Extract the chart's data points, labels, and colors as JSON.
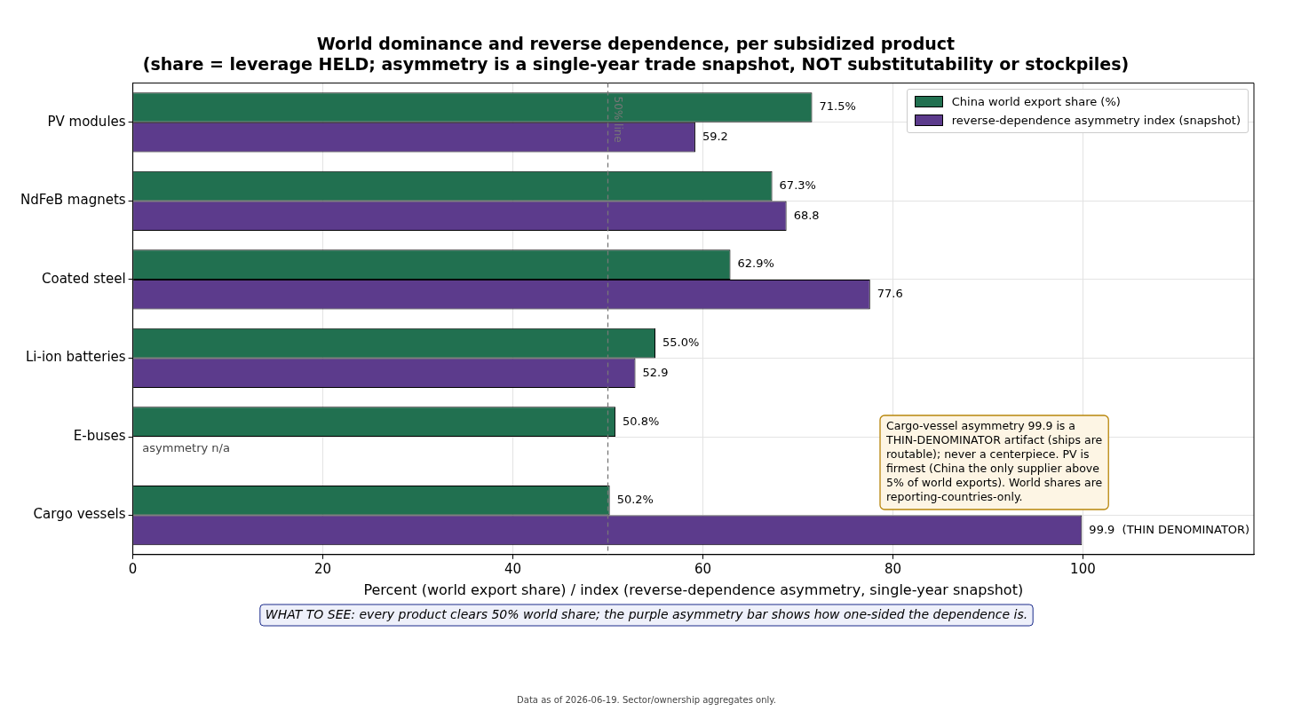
{
  "chart_data": {
    "type": "bar",
    "orientation": "horizontal",
    "title": "World dominance and reverse dependence, per subsidized product\n(share = leverage HELD; asymmetry is a single-year trade snapshot, NOT substitutability or stockpiles)",
    "xlabel": "Percent (world export share) / index (reverse-dependence asymmetry, single-year snapshot)",
    "categories": [
      "PV modules",
      "NdFeB magnets",
      "Coated steel",
      "Li-ion batteries",
      "E-buses",
      "Cargo vessels"
    ],
    "series": [
      {
        "name": "China world export share (%)",
        "color": "#217050",
        "values": [
          71.5,
          67.3,
          62.9,
          55.0,
          50.8,
          50.2
        ],
        "value_labels": [
          "71.5%",
          "67.3%",
          "62.9%",
          "55.0%",
          "50.8%",
          "50.2%"
        ]
      },
      {
        "name": "reverse-dependence asymmetry index (snapshot)",
        "color": "#5c3b8c",
        "values": [
          59.2,
          68.8,
          77.6,
          52.9,
          null,
          99.9
        ],
        "value_labels": [
          "59.2",
          "68.8",
          "77.6",
          "52.9",
          null,
          "99.9  (THIN DENOMINATOR)"
        ]
      }
    ],
    "xlim": [
      0,
      118
    ],
    "xticks": [
      0,
      20,
      40,
      60,
      80,
      100
    ],
    "grid": true,
    "legend": "top right",
    "ref_lines": [
      {
        "axis": "x",
        "value": 50,
        "label": "50% line",
        "color": "#777777",
        "line_style": "dashed"
      }
    ],
    "annotations": [
      {
        "text": "asymmetry n/a",
        "x": 1,
        "y": "E-buses"
      },
      "Cargo-vessel asymmetry 99.9 is a\nTHIN-DENOMINATOR artifact (ships are\nroutable); never a centerpiece. PV is\nfirmest (China the only supplier above\n5% of world exports). World shares are\nreporting-countries-only.",
      "WHAT TO SEE: every product clears 50% world share; the purple asymmetry bar shows how one-sided the dependence is.",
      "Data as of 2026-06-19. Sector/ownership aggregates only."
    ]
  }
}
